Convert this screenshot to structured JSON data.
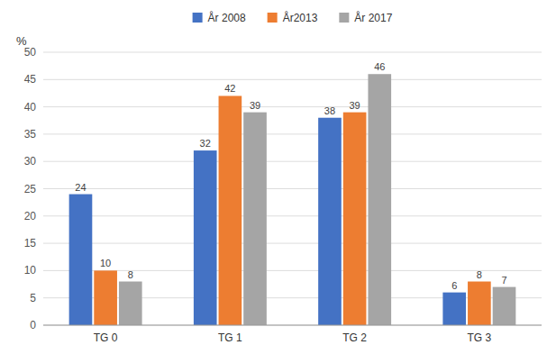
{
  "chart_data": {
    "type": "bar",
    "categories": [
      "TG 0",
      "TG 1",
      "TG 2",
      "TG 3"
    ],
    "series": [
      {
        "name": "År 2008",
        "color": "#4472C4",
        "values": [
          24,
          32,
          38,
          6
        ]
      },
      {
        "name": "År2013",
        "color": "#ED7D31",
        "values": [
          10,
          42,
          39,
          8
        ]
      },
      {
        "name": "År 2017",
        "color": "#A5A5A5",
        "values": [
          8,
          39,
          46,
          7
        ]
      }
    ],
    "ylabel": "%",
    "ylim": [
      0,
      50
    ],
    "yticks": [
      0,
      5,
      10,
      15,
      20,
      25,
      30,
      35,
      40,
      45,
      50
    ],
    "grid": true,
    "legend": "top",
    "data_labels": true
  }
}
